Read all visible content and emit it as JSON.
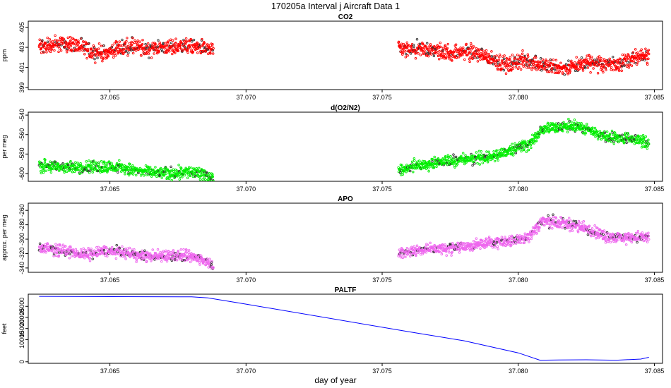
{
  "figure": {
    "title": "170205a   Interval j Aircraft Data 1",
    "xlabel": "day of year"
  },
  "chart_data": [
    {
      "type": "scatter",
      "title": "CO2",
      "ylabel": "ppm",
      "color": "#ff0000",
      "xlim": [
        37.062,
        37.0853
      ],
      "ylim": [
        398.8,
        405.6
      ],
      "yticks": [
        399,
        401,
        403,
        405
      ],
      "xticks": [
        37.065,
        37.07,
        37.075,
        37.08,
        37.085
      ],
      "segments": [
        {
          "x_start": 37.0624,
          "x_end": 37.0688,
          "trend_x": [
            37.0624,
            37.0628,
            37.0633,
            37.0638,
            37.0643,
            37.0648,
            37.0653,
            37.0658,
            37.0663,
            37.0668,
            37.0673,
            37.0678,
            37.0683,
            37.0688
          ],
          "trend_y": [
            403.0,
            403.2,
            403.4,
            403.2,
            402.6,
            402.4,
            402.9,
            403.1,
            402.8,
            403.0,
            403.0,
            403.2,
            403.0,
            402.7
          ]
        },
        {
          "x_start": 37.0756,
          "x_end": 37.0848,
          "trend_x": [
            37.0756,
            37.0761,
            37.0766,
            37.0771,
            37.0776,
            37.0781,
            37.0786,
            37.0791,
            37.0796,
            37.0801,
            37.0806,
            37.0811,
            37.0816,
            37.0821,
            37.0826,
            37.0831,
            37.0836,
            37.0841,
            37.0848
          ],
          "trend_y": [
            402.8,
            402.7,
            402.8,
            402.6,
            402.4,
            402.6,
            402.3,
            401.8,
            401.2,
            401.7,
            401.5,
            401.1,
            400.9,
            401.1,
            401.6,
            401.3,
            401.4,
            401.8,
            402.2
          ]
        }
      ],
      "noise": 0.45
    },
    {
      "type": "scatter",
      "title": "d(O2/N2)",
      "ylabel": "per meg",
      "color": "#00ee00",
      "xlim": [
        37.062,
        37.0853
      ],
      "ylim": [
        -608,
        -537
      ],
      "yticks": [
        -540,
        -560,
        -580,
        -600
      ],
      "xticks": [
        37.065,
        37.07,
        37.075,
        37.08,
        37.085
      ],
      "segments": [
        {
          "x_start": 37.0624,
          "x_end": 37.0688,
          "trend_x": [
            37.0624,
            37.063,
            37.0636,
            37.0642,
            37.0648,
            37.0654,
            37.066,
            37.0666,
            37.0672,
            37.0678,
            37.0683,
            37.0688
          ],
          "trend_y": [
            -592,
            -593,
            -594,
            -593,
            -593,
            -594,
            -597,
            -599,
            -600,
            -598,
            -600,
            -605
          ]
        },
        {
          "x_start": 37.0756,
          "x_end": 37.0848,
          "trend_x": [
            37.0756,
            37.0762,
            37.0768,
            37.0774,
            37.078,
            37.0786,
            37.0792,
            37.0798,
            37.0804,
            37.0809,
            37.0814,
            37.082,
            37.0826,
            37.0832,
            37.0838,
            37.0844,
            37.0848
          ],
          "trend_y": [
            -596,
            -592,
            -590,
            -587,
            -586,
            -584,
            -582,
            -574,
            -570,
            -555,
            -552,
            -551,
            -555,
            -562,
            -564,
            -565,
            -570
          ]
        }
      ],
      "noise": 3.5
    },
    {
      "type": "scatter",
      "title": "APO",
      "ylabel": "approx. per meg",
      "color": "#ee66ee",
      "xlim": [
        37.062,
        37.0853
      ],
      "ylim": [
        -346,
        -250
      ],
      "yticks": [
        -260,
        -280,
        -300,
        -320,
        -340
      ],
      "xticks": [
        37.065,
        37.07,
        37.075,
        37.08,
        37.085
      ],
      "segments": [
        {
          "x_start": 37.0624,
          "x_end": 37.0688,
          "trend_x": [
            37.0624,
            37.063,
            37.0636,
            37.0642,
            37.0648,
            37.0654,
            37.066,
            37.0666,
            37.0672,
            37.0678,
            37.0683,
            37.0688
          ],
          "trend_y": [
            -312,
            -314,
            -318,
            -322,
            -316,
            -318,
            -322,
            -324,
            -322,
            -324,
            -326,
            -336
          ]
        },
        {
          "x_start": 37.0756,
          "x_end": 37.0848,
          "trend_x": [
            37.0756,
            37.0762,
            37.0768,
            37.0774,
            37.078,
            37.0786,
            37.0792,
            37.0798,
            37.0804,
            37.0809,
            37.0814,
            37.082,
            37.0826,
            37.0832,
            37.0838,
            37.0844,
            37.0848
          ],
          "trend_y": [
            -320,
            -316,
            -313,
            -313,
            -310,
            -307,
            -304,
            -302,
            -296,
            -274,
            -276,
            -280,
            -286,
            -296,
            -298,
            -297,
            -298
          ]
        }
      ],
      "noise": 4.5
    },
    {
      "type": "line",
      "title": "PALTF",
      "ylabel": "feet",
      "color": "#0000ff",
      "xlim": [
        37.062,
        37.0853
      ],
      "ylim": [
        -700,
        30500
      ],
      "yticks": [
        0,
        10000,
        15000,
        20000,
        25000
      ],
      "xticks": [
        37.065,
        37.07,
        37.075,
        37.08,
        37.085
      ],
      "x": [
        37.0624,
        37.065,
        37.068,
        37.0686,
        37.07,
        37.076,
        37.078,
        37.08,
        37.0808,
        37.0815,
        37.0825,
        37.0836,
        37.0845,
        37.0848
      ],
      "y": [
        29500,
        29400,
        29300,
        28800,
        26000,
        13500,
        9500,
        4000,
        700,
        800,
        900,
        700,
        1200,
        2000
      ]
    }
  ]
}
